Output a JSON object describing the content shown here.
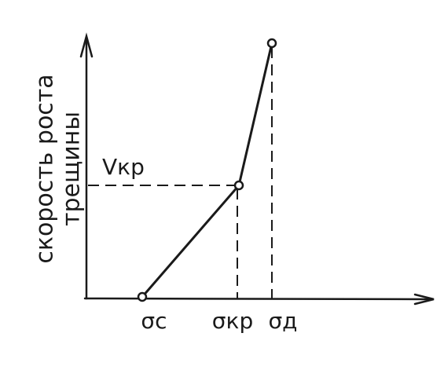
{
  "axes": {
    "y_label": [
      "скорость роста",
      "трещины"
    ]
  },
  "labels": {
    "v_cr": "Vкр",
    "sigma_c": "σс",
    "sigma_cr": "σкр",
    "sigma_d": "σд"
  }
}
